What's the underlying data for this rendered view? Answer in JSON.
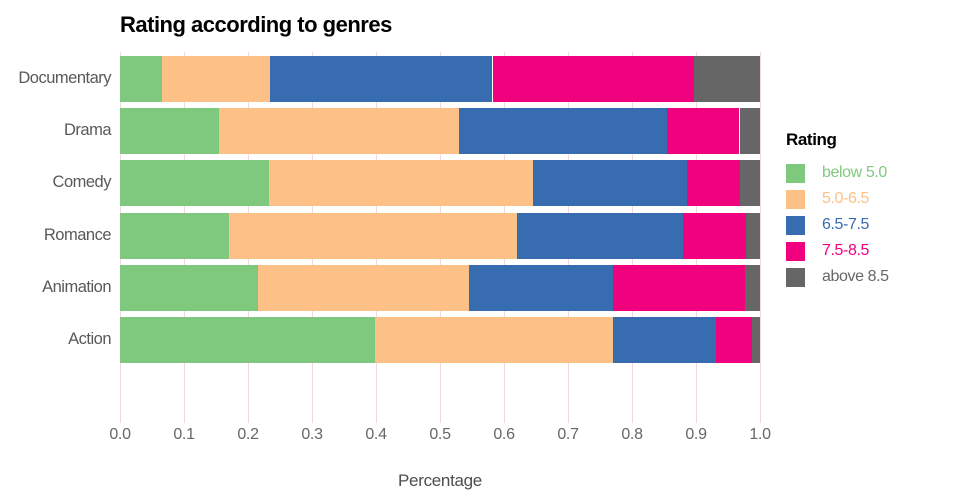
{
  "chart_data": {
    "type": "bar",
    "orientation": "horizontal-stacked",
    "title": "Rating according to genres",
    "xlabel": "Percentage",
    "legend_title": "Rating",
    "legend_position": "right",
    "grid": "vertical pale-pink lines at 0.1 intervals",
    "xlim": [
      0.0,
      1.0
    ],
    "x_ticks": [
      "0.0",
      "0.1",
      "0.2",
      "0.3",
      "0.4",
      "0.5",
      "0.6",
      "0.7",
      "0.8",
      "0.9",
      "1.0"
    ],
    "categories": [
      "Documentary",
      "Drama",
      "Comedy",
      "Romance",
      "Animation",
      "Action"
    ],
    "series": [
      {
        "name": "below 5.0",
        "color": "#7fc97f",
        "values": [
          0.065,
          0.155,
          0.232,
          0.171,
          0.215,
          0.398
        ]
      },
      {
        "name": "5.0-6.5",
        "color": "#fdc086",
        "values": [
          0.17,
          0.375,
          0.414,
          0.449,
          0.33,
          0.372
        ]
      },
      {
        "name": "6.5-7.5",
        "color": "#386cb0",
        "values": [
          0.347,
          0.325,
          0.24,
          0.26,
          0.226,
          0.161
        ]
      },
      {
        "name": "7.5-8.5",
        "color": "#f0027f",
        "values": [
          0.315,
          0.113,
          0.082,
          0.098,
          0.206,
          0.057
        ]
      },
      {
        "name": "above 8.5",
        "color": "#666666",
        "values": [
          0.103,
          0.032,
          0.032,
          0.022,
          0.023,
          0.012
        ]
      }
    ],
    "colors": {
      "gridline": "#f2dada",
      "axis_text": "#666666",
      "category_text": "#595959",
      "title_text": "#000000"
    }
  }
}
